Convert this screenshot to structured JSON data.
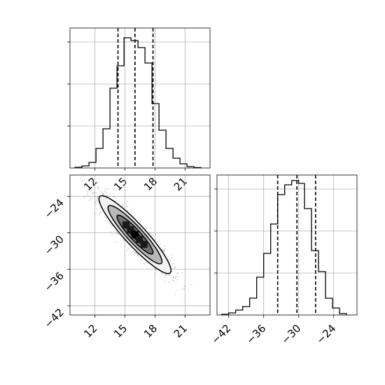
{
  "chart_data": {
    "type": "corner",
    "grid": true,
    "colors": {
      "line": "#000000",
      "grid": "#b0b0b0",
      "scatter": "#7f7f7f"
    },
    "panels": [
      {
        "kind": "histogram",
        "parameter": "x",
        "xlim": [
          9.5,
          23.5
        ],
        "ylim": [
          0,
          1
        ],
        "xticks": [
          12,
          15,
          18,
          21
        ],
        "yticks": [
          0.3,
          0.6,
          0.9
        ],
        "bin_edges": [
          10,
          10.7,
          11.4,
          12.1,
          12.8,
          13.5,
          14.2,
          14.9,
          15.6,
          16.3,
          17.0,
          17.7,
          18.4,
          19.1,
          19.8,
          20.5,
          21.2,
          21.9,
          22.6
        ],
        "heights": [
          0.005,
          0.015,
          0.04,
          0.14,
          0.28,
          0.57,
          0.73,
          0.93,
          0.91,
          0.86,
          0.75,
          0.46,
          0.27,
          0.14,
          0.07,
          0.03,
          0.01,
          0.003
        ],
        "quantiles": [
          14.3,
          16.0,
          17.8
        ]
      },
      {
        "kind": "2d",
        "parameters": [
          "x",
          "y"
        ],
        "xlim": [
          9.5,
          23.5
        ],
        "ylim": [
          -43.5,
          -20.5
        ],
        "xticks": [
          12,
          15,
          18,
          21
        ],
        "yticks": [
          -24,
          -30,
          -36,
          -42
        ],
        "mean": [
          16.0,
          -30.3
        ],
        "sigma": [
          1.8,
          3.2
        ],
        "correlation": -0.92,
        "contour_levels": [
          0.5,
          1.0,
          1.5,
          2.0
        ]
      },
      {
        "kind": "histogram",
        "parameter": "y",
        "xlim": [
          -44.0,
          -20.0
        ],
        "ylim": [
          0,
          1
        ],
        "xticks": [
          -42,
          -36,
          -30,
          -24
        ],
        "yticks": [
          0.3,
          0.6,
          0.9
        ],
        "bin_edges": [
          -43.2,
          -42.0,
          -40.8,
          -39.6,
          -38.4,
          -37.2,
          -36.0,
          -34.8,
          -33.6,
          -32.4,
          -31.2,
          -30.0,
          -29.0,
          -27.8,
          -26.6,
          -25.4,
          -24.2,
          -23.0,
          -21.8
        ],
        "heights": [
          0.005,
          0.015,
          0.035,
          0.06,
          0.12,
          0.27,
          0.44,
          0.65,
          0.86,
          0.93,
          0.96,
          0.94,
          0.76,
          0.46,
          0.31,
          0.12,
          0.05,
          0.01
        ],
        "quantiles": [
          -33.6,
          -30.3,
          -27.1
        ]
      }
    ]
  }
}
